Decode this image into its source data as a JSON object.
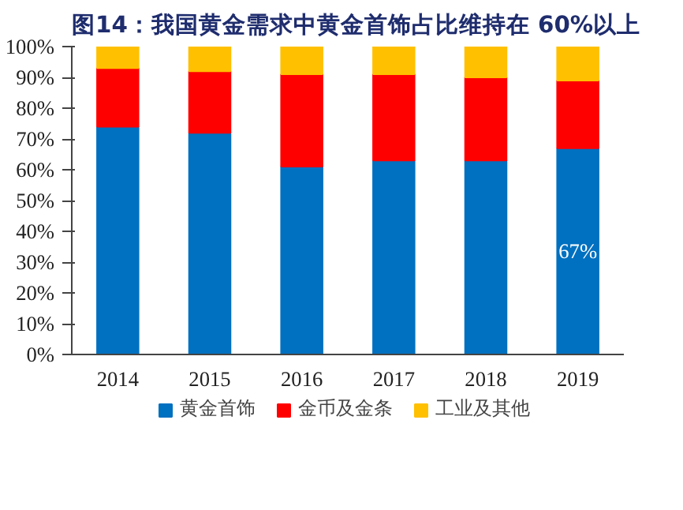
{
  "chart_data": {
    "type": "bar",
    "stacked": true,
    "title": "图14：我国黄金需求中黄金首饰占比维持在 60%以上",
    "categories": [
      "2014",
      "2015",
      "2016",
      "2017",
      "2018",
      "2019"
    ],
    "series": [
      {
        "name": "黄金首饰",
        "color": "#0070c0",
        "values": [
          74,
          72,
          61,
          63,
          63,
          67
        ],
        "value_labels": [
          null,
          null,
          null,
          null,
          null,
          "67%"
        ]
      },
      {
        "name": "金币及金条",
        "color": "#ff0000",
        "values": [
          19,
          20,
          30,
          28,
          27,
          22
        ]
      },
      {
        "name": "工业及其他",
        "color": "#ffc000",
        "values": [
          7,
          8,
          9,
          9,
          10,
          11
        ]
      }
    ],
    "ylim": [
      0,
      100
    ],
    "yticks": [
      {
        "value": 0,
        "label": "0%"
      },
      {
        "value": 10,
        "label": "10%"
      },
      {
        "value": 20,
        "label": "20%"
      },
      {
        "value": 30,
        "label": "30%"
      },
      {
        "value": 40,
        "label": "40%"
      },
      {
        "value": 50,
        "label": "50%"
      },
      {
        "value": 60,
        "label": "60%"
      },
      {
        "value": 70,
        "label": "70%"
      },
      {
        "value": 80,
        "label": "80%"
      },
      {
        "value": 90,
        "label": "90%"
      },
      {
        "value": 100,
        "label": "100%"
      }
    ],
    "grid": false,
    "legend": "bottom"
  }
}
